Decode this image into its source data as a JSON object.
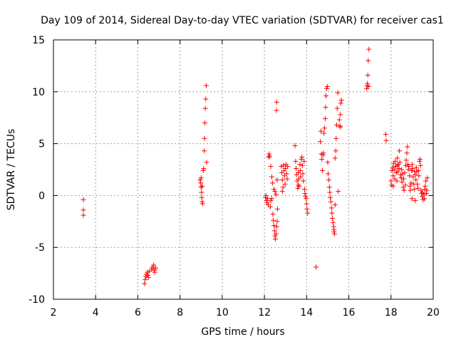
{
  "chart_data": {
    "type": "scatter",
    "title": "Day 109 of 2014, Sidereal Day-to-day VTEC variation (SDTVAR) for receiver cas1",
    "xlabel": "GPS time / hours",
    "ylabel": "SDTVAR / TECUs",
    "xlim": [
      2,
      20
    ],
    "ylim": [
      -10,
      15
    ],
    "xticks": [
      "2",
      "4",
      "6",
      "8",
      "10",
      "12",
      "14",
      "16",
      "18",
      "20"
    ],
    "yticks": [
      "-10",
      "-5",
      "0",
      "5",
      "10",
      "15"
    ],
    "grid": true,
    "marker": "plus",
    "series_color": "#ff0000",
    "points": [
      [
        3.42,
        -0.4
      ],
      [
        3.42,
        -1.4
      ],
      [
        3.42,
        -1.9
      ],
      [
        6.32,
        -8.5
      ],
      [
        6.35,
        -8.1
      ],
      [
        6.38,
        -7.8
      ],
      [
        6.4,
        -7.6
      ],
      [
        6.45,
        -7.4
      ],
      [
        6.48,
        -7.7
      ],
      [
        6.5,
        -7.9
      ],
      [
        6.55,
        -7.3
      ],
      [
        6.65,
        -7.1
      ],
      [
        6.7,
        -6.9
      ],
      [
        6.75,
        -6.7
      ],
      [
        6.78,
        -7.2
      ],
      [
        6.8,
        -7.4
      ],
      [
        6.85,
        -7.0
      ],
      [
        8.95,
        1.5
      ],
      [
        8.98,
        1.2
      ],
      [
        9.0,
        0.8
      ],
      [
        9.02,
        0.3
      ],
      [
        9.03,
        -0.2
      ],
      [
        9.05,
        -0.6
      ],
      [
        9.07,
        -0.8
      ],
      [
        9.1,
        2.4
      ],
      [
        9.12,
        2.6
      ],
      [
        9.15,
        4.3
      ],
      [
        9.16,
        5.5
      ],
      [
        9.18,
        7.0
      ],
      [
        9.2,
        8.4
      ],
      [
        9.22,
        9.3
      ],
      [
        9.24,
        10.6
      ],
      [
        9.26,
        3.2
      ],
      [
        9.0,
        1.7
      ],
      [
        9.05,
        0.9
      ],
      [
        12.05,
        -0.2
      ],
      [
        12.07,
        0.0
      ],
      [
        12.1,
        -0.5
      ],
      [
        12.12,
        -0.7
      ],
      [
        12.15,
        -0.3
      ],
      [
        12.18,
        -0.9
      ],
      [
        12.2,
        3.7
      ],
      [
        12.22,
        4.0
      ],
      [
        12.25,
        3.8
      ],
      [
        12.28,
        -1.1
      ],
      [
        12.3,
        -0.5
      ],
      [
        12.3,
        2.8
      ],
      [
        12.35,
        1.8
      ],
      [
        12.38,
        1.2
      ],
      [
        12.4,
        -1.8
      ],
      [
        12.42,
        -2.4
      ],
      [
        12.45,
        -2.9
      ],
      [
        12.48,
        -3.4
      ],
      [
        12.5,
        -3.9
      ],
      [
        12.52,
        -4.2
      ],
      [
        12.5,
        0.4
      ],
      [
        12.55,
        -3.7
      ],
      [
        12.58,
        -3.0
      ],
      [
        12.6,
        -2.5
      ],
      [
        12.55,
        0.1
      ],
      [
        12.57,
        8.2
      ],
      [
        12.58,
        9.0
      ],
      [
        12.6,
        1.5
      ],
      [
        12.62,
        -1.3
      ],
      [
        12.45,
        0.6
      ],
      [
        12.35,
        -0.3
      ],
      [
        12.8,
        2.8
      ],
      [
        12.82,
        2.2
      ],
      [
        12.85,
        1.5
      ],
      [
        12.88,
        0.8
      ],
      [
        12.9,
        2.9
      ],
      [
        12.92,
        2.4
      ],
      [
        12.95,
        1.9
      ],
      [
        12.98,
        1.1
      ],
      [
        13.0,
        2.6
      ],
      [
        13.02,
        3.0
      ],
      [
        13.05,
        2.1
      ],
      [
        13.08,
        1.6
      ],
      [
        13.1,
        2.8
      ],
      [
        12.85,
        0.4
      ],
      [
        13.45,
        4.8
      ],
      [
        13.48,
        3.3
      ],
      [
        13.5,
        2.6
      ],
      [
        13.52,
        2.0
      ],
      [
        13.55,
        1.4
      ],
      [
        13.58,
        0.7
      ],
      [
        13.6,
        2.2
      ],
      [
        13.62,
        1.6
      ],
      [
        13.65,
        0.9
      ],
      [
        13.68,
        3.0
      ],
      [
        13.7,
        2.4
      ],
      [
        13.72,
        1.8
      ],
      [
        13.75,
        3.5
      ],
      [
        13.78,
        3.7
      ],
      [
        13.8,
        2.9
      ],
      [
        13.82,
        2.1
      ],
      [
        13.85,
        1.4
      ],
      [
        13.88,
        3.3
      ],
      [
        13.9,
        0.6
      ],
      [
        13.92,
        0.2
      ],
      [
        13.95,
        -0.1
      ],
      [
        13.98,
        -0.3
      ],
      [
        14.0,
        -0.8
      ],
      [
        14.02,
        -1.3
      ],
      [
        14.05,
        -1.7
      ],
      [
        13.6,
        1.0
      ],
      [
        14.45,
        -6.9
      ],
      [
        14.65,
        5.2
      ],
      [
        14.68,
        6.2
      ],
      [
        14.7,
        4.0
      ],
      [
        14.72,
        3.5
      ],
      [
        14.75,
        2.4
      ],
      [
        14.78,
        3.9
      ],
      [
        14.8,
        4.1
      ],
      [
        14.82,
        6.0
      ],
      [
        14.85,
        6.5
      ],
      [
        14.88,
        7.4
      ],
      [
        14.9,
        8.5
      ],
      [
        14.92,
        9.6
      ],
      [
        14.95,
        10.3
      ],
      [
        14.98,
        10.5
      ],
      [
        15.0,
        3.2
      ],
      [
        15.02,
        2.1
      ],
      [
        15.05,
        1.5
      ],
      [
        15.08,
        0.8
      ],
      [
        15.1,
        0.3
      ],
      [
        15.12,
        -0.2
      ],
      [
        15.15,
        -0.6
      ],
      [
        15.18,
        -1.2
      ],
      [
        15.2,
        -1.7
      ],
      [
        15.22,
        -2.2
      ],
      [
        15.25,
        -2.6
      ],
      [
        15.28,
        -3.0
      ],
      [
        15.3,
        -3.3
      ],
      [
        15.32,
        -3.7
      ],
      [
        15.35,
        3.6
      ],
      [
        15.38,
        4.3
      ],
      [
        15.4,
        5.5
      ],
      [
        15.42,
        6.8
      ],
      [
        15.45,
        8.4
      ],
      [
        15.48,
        9.9
      ],
      [
        15.5,
        0.4
      ],
      [
        15.35,
        -0.9
      ],
      [
        15.3,
        -3.5
      ],
      [
        15.55,
        7.3
      ],
      [
        15.58,
        6.7
      ],
      [
        15.6,
        7.8
      ],
      [
        15.62,
        8.9
      ],
      [
        15.65,
        9.2
      ],
      [
        15.6,
        6.6
      ],
      [
        16.85,
        10.3
      ],
      [
        16.87,
        10.6
      ],
      [
        16.88,
        10.8
      ],
      [
        16.9,
        11.6
      ],
      [
        16.92,
        13.0
      ],
      [
        16.95,
        14.1
      ],
      [
        16.93,
        10.5
      ],
      [
        17.75,
        5.9
      ],
      [
        17.77,
        5.3
      ],
      [
        18.0,
        1.4
      ],
      [
        18.02,
        1.0
      ],
      [
        18.05,
        2.4
      ],
      [
        18.08,
        2.7
      ],
      [
        18.1,
        1.9
      ],
      [
        18.12,
        3.1
      ],
      [
        18.15,
        2.5
      ],
      [
        18.18,
        1.6
      ],
      [
        18.2,
        3.3
      ],
      [
        18.22,
        2.8
      ],
      [
        18.25,
        2.2
      ],
      [
        18.28,
        1.4
      ],
      [
        18.3,
        2.9
      ],
      [
        18.32,
        2.3
      ],
      [
        18.35,
        3.0
      ],
      [
        18.38,
        2.6
      ],
      [
        18.4,
        4.3
      ],
      [
        18.42,
        3.2
      ],
      [
        18.45,
        2.0
      ],
      [
        18.48,
        1.7
      ],
      [
        18.5,
        2.5
      ],
      [
        18.52,
        1.3
      ],
      [
        18.55,
        2.1
      ],
      [
        18.58,
        0.8
      ],
      [
        18.6,
        1.6
      ],
      [
        18.62,
        0.5
      ],
      [
        18.65,
        2.2
      ],
      [
        18.68,
        1.0
      ],
      [
        18.7,
        2.9
      ],
      [
        18.72,
        3.4
      ],
      [
        18.75,
        4.1
      ],
      [
        18.78,
        4.7
      ],
      [
        18.8,
        3.0
      ],
      [
        18.82,
        2.5
      ],
      [
        18.85,
        2.8
      ],
      [
        18.88,
        1.9
      ],
      [
        18.9,
        0.9
      ],
      [
        18.92,
        0.5
      ],
      [
        18.95,
        1.2
      ],
      [
        18.98,
        2.4
      ],
      [
        19.0,
        3.0
      ],
      [
        19.02,
        2.6
      ],
      [
        19.05,
        1.8
      ],
      [
        19.08,
        1.1
      ],
      [
        19.1,
        0.6
      ],
      [
        19.12,
        2.3
      ],
      [
        19.15,
        2.0
      ],
      [
        19.18,
        1.5
      ],
      [
        19.2,
        2.7
      ],
      [
        19.22,
        2.3
      ],
      [
        19.25,
        1.1
      ],
      [
        19.28,
        0.7
      ],
      [
        19.3,
        2.4
      ],
      [
        19.32,
        1.9
      ],
      [
        19.35,
        3.3
      ],
      [
        19.38,
        3.5
      ],
      [
        19.4,
        2.9
      ],
      [
        19.42,
        0.5
      ],
      [
        19.45,
        0.2
      ],
      [
        19.48,
        -0.1
      ],
      [
        19.5,
        0.3
      ],
      [
        19.52,
        -0.4
      ],
      [
        19.55,
        0.1
      ],
      [
        19.58,
        -0.3
      ],
      [
        19.6,
        0.6
      ],
      [
        19.62,
        0.9
      ],
      [
        19.65,
        1.4
      ],
      [
        19.68,
        0.2
      ],
      [
        19.7,
        0.5
      ],
      [
        19.72,
        1.7
      ],
      [
        18.1,
        0.9
      ],
      [
        18.3,
        3.6
      ],
      [
        19.0,
        -0.3
      ],
      [
        19.15,
        -0.5
      ]
    ]
  }
}
